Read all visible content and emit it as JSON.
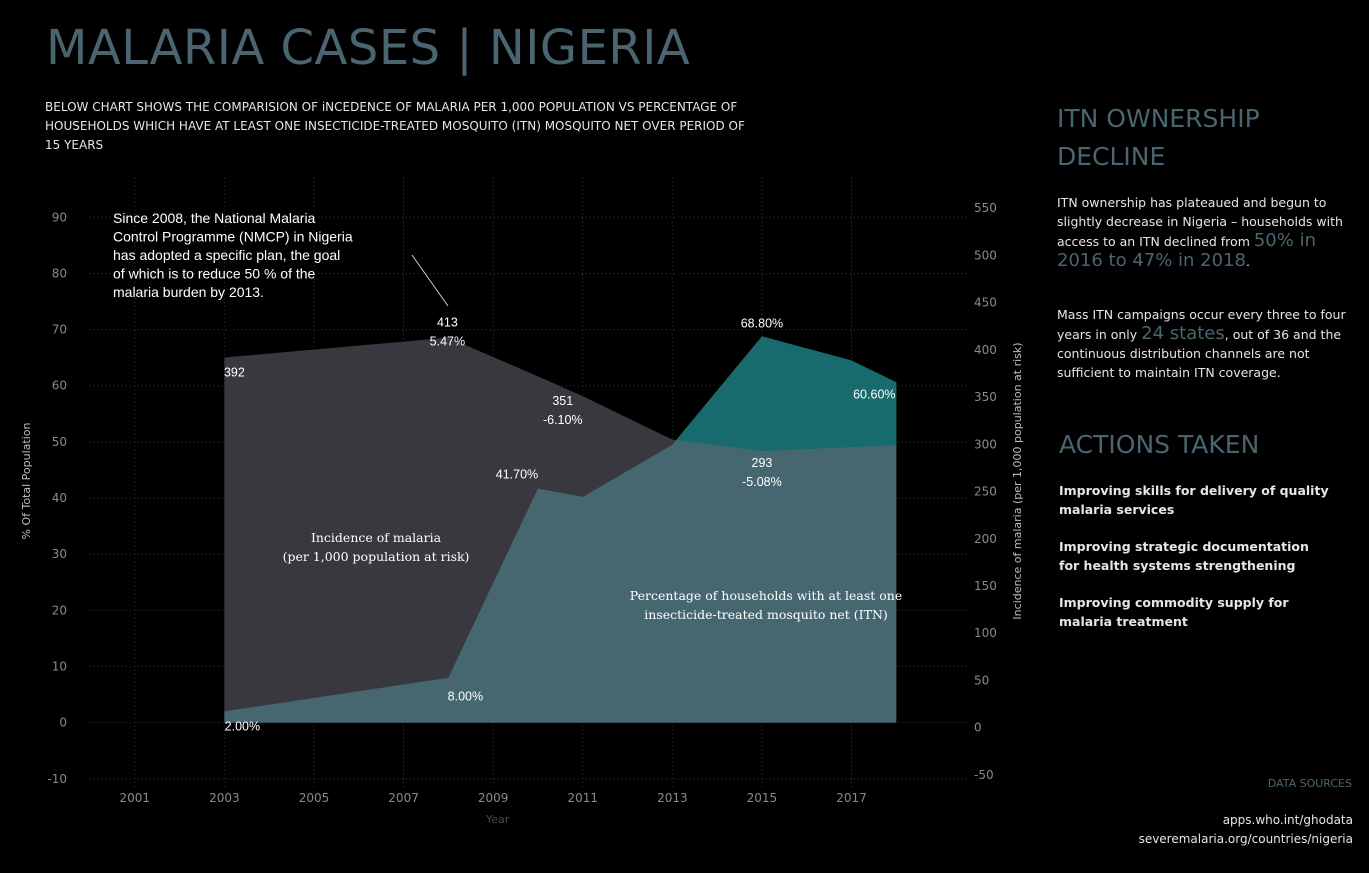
{
  "header": {
    "title": "MALARIA CASES | NIGERIA",
    "subtitle": "BELOW CHART SHOWS THE COMPARISION OF iNCEDENCE OF MALARIA PER 1,000 POPULATION VS PERCENTAGE OF HOUSEHOLDS WHICH HAVE AT LEAST ONE INSECTICIDE-TREATED MOSQUITO (ITN) MOSQUITO NET OVER PERIOD OF 15 YEARS"
  },
  "chart_data": {
    "type": "area",
    "x": [
      2003,
      2008,
      2010,
      2011,
      2013,
      2015,
      2017,
      2018
    ],
    "xlabel": "Year",
    "ylabel_left": "% Of Total Population",
    "ylabel_right": "Incidence of malaria (per 1,000 population at risk)",
    "xlim": [
      2000,
      2019.6
    ],
    "ylim_left": [
      -12,
      97
    ],
    "ylim_right": [
      -66,
      582
    ],
    "x_ticks": [
      "2001",
      "2003",
      "2005",
      "2007",
      "2009",
      "2011",
      "2013",
      "2015",
      "2017"
    ],
    "y_left_ticks": [
      "-10",
      "0",
      "10",
      "20",
      "30",
      "40",
      "50",
      "60",
      "70",
      "80",
      "90"
    ],
    "y_right_ticks": [
      "-50",
      "0",
      "50",
      "100",
      "150",
      "200",
      "250",
      "300",
      "350",
      "400",
      "450",
      "500",
      "550"
    ],
    "grid": true,
    "series": [
      {
        "name": "Incidence of malaria (per 1,000 population at risk)",
        "axis": "right",
        "color": "#38383e",
        "values": [
          392,
          413,
          372,
          351,
          305,
          293,
          297,
          299
        ]
      },
      {
        "name": "Percentage of households with at least one insecticide-treated mosquito net (ITN)",
        "axis": "left",
        "color": "#466770",
        "overlap_color": "#176a6e",
        "values": [
          2.0,
          8.0,
          41.7,
          40.2,
          49.5,
          68.8,
          64.5,
          60.6
        ]
      }
    ],
    "series_labels": [
      {
        "text": "Incidence of malaria",
        "line": 1
      },
      {
        "text": "(per 1,000 population at risk)",
        "line": 2
      },
      {
        "text": "Percentage of households with at least one",
        "line": 1
      },
      {
        "text": "insecticide-treated mosquito net (ITN)",
        "line": 2
      }
    ],
    "data_labels": [
      {
        "text": "392",
        "x": 2003,
        "series": "incidence"
      },
      {
        "text": "413",
        "x": 2008,
        "series": "incidence"
      },
      {
        "text": "5.47%",
        "x": 2008,
        "series": "incidence"
      },
      {
        "text": "351",
        "x": 2011,
        "series": "incidence"
      },
      {
        "text": "-6.10%",
        "x": 2011,
        "series": "incidence"
      },
      {
        "text": "293",
        "x": 2015,
        "series": "incidence"
      },
      {
        "text": "-5.08%",
        "x": 2015,
        "series": "incidence"
      },
      {
        "text": "2.00%",
        "x": 2003,
        "series": "itn"
      },
      {
        "text": "8.00%",
        "x": 2008,
        "series": "itn"
      },
      {
        "text": "41.70%",
        "x": 2010,
        "series": "itn"
      },
      {
        "text": "68.80%",
        "x": 2015,
        "series": "itn"
      },
      {
        "text": "60.60%",
        "x": 2018,
        "series": "itn"
      }
    ],
    "annotation": [
      "Since 2008, the National Malaria",
      "Control Programme (NMCP) in Nigeria",
      "has adopted a specific plan, the goal",
      "of which is to reduce 50 % of the",
      "malaria burden by 2013."
    ]
  },
  "sidebar": {
    "itn_heading_1": "ITN OWNERSHIP",
    "itn_heading_2": "DECLINE",
    "p1_a": "ITN ownership has plateaued and begun to slightly decrease in Nigeria – households with access to an ITN declined from ",
    "p1_big": "50% in 2016 to 47% in 2018",
    "p1_end": ".",
    "p2_a": "Mass ITN campaigns occur every three to four years in only ",
    "p2_big": "24 states",
    "p2_b": ", out of 36 and the continuous distribution channels are not sufficient to maintain ITN coverage.",
    "actions_heading": "ACTIONS TAKEN",
    "actions": [
      "Improving skills for delivery of quality malaria services",
      "Improving strategic documentation for health systems strengthening",
      "Improving commodity supply for malaria treatment"
    ]
  },
  "sources": {
    "heading": "DATA SOURCES",
    "items": [
      "apps.who.int/ghodata",
      "severemalaria.org/countries/nigeria"
    ]
  },
  "colors": {
    "background": "#000000",
    "heading": "#4a6570",
    "incidence_area": "#38383e",
    "itn_area": "#466770",
    "overlap_area": "#176a6e"
  }
}
